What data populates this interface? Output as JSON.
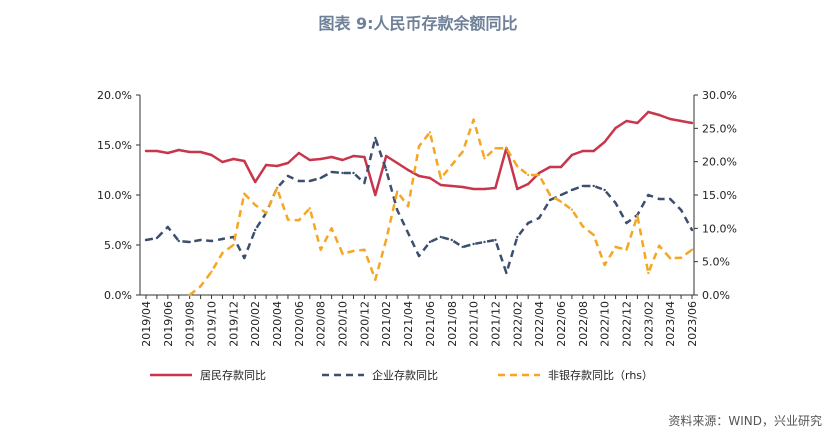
{
  "chart_data": {
    "type": "line",
    "title": "图表 9:人民币存款余额同比",
    "source": "资料来源：WIND，兴业研究",
    "categories": [
      "2019/04",
      "2019/05",
      "2019/06",
      "2019/07",
      "2019/08",
      "2019/09",
      "2019/10",
      "2019/11",
      "2019/12",
      "2020/01",
      "2020/02",
      "2020/03",
      "2020/04",
      "2020/05",
      "2020/06",
      "2020/07",
      "2020/08",
      "2020/09",
      "2020/10",
      "2020/11",
      "2020/12",
      "2021/01",
      "2021/02",
      "2021/03",
      "2021/04",
      "2021/05",
      "2021/06",
      "2021/07",
      "2021/08",
      "2021/09",
      "2021/10",
      "2021/11",
      "2021/12",
      "2022/01",
      "2022/02",
      "2022/03",
      "2022/04",
      "2022/05",
      "2022/06",
      "2022/07",
      "2022/08",
      "2022/09",
      "2022/10",
      "2022/11",
      "2022/12",
      "2023/01",
      "2023/02",
      "2023/03",
      "2023/04",
      "2023/05",
      "2023/06"
    ],
    "y_left": {
      "range": [
        0,
        20
      ],
      "ticks": [
        "0.0%",
        "5.0%",
        "10.0%",
        "15.0%",
        "20.0%"
      ]
    },
    "y_right": {
      "range": [
        0,
        30
      ],
      "ticks": [
        "0.0%",
        "5.0%",
        "10.0%",
        "15.0%",
        "20.0%",
        "25.0%",
        "30.0%"
      ]
    },
    "grid": false,
    "legend_position": "bottom",
    "series": [
      {
        "name": "居民存款同比",
        "axis": "left",
        "color": "#c8364b",
        "dash": false,
        "values": [
          14.4,
          14.4,
          14.2,
          14.5,
          14.3,
          14.3,
          14.0,
          13.3,
          13.6,
          13.4,
          11.3,
          13.0,
          12.9,
          13.2,
          14.2,
          13.5,
          13.6,
          13.8,
          13.5,
          13.9,
          13.8,
          10.0,
          13.9,
          13.2,
          12.5,
          11.9,
          11.7,
          11.0,
          10.9,
          10.8,
          10.6,
          10.6,
          10.7,
          14.7,
          10.6,
          11.1,
          12.2,
          12.8,
          12.8,
          14.0,
          14.4,
          14.4,
          15.3,
          16.7,
          17.4,
          17.2,
          18.3,
          18.0,
          17.6,
          17.4,
          17.2
        ]
      },
      {
        "name": "企业存款同比",
        "axis": "left",
        "color": "#3d4f6e",
        "dash": true,
        "values": [
          5.5,
          5.7,
          6.8,
          5.4,
          5.3,
          5.5,
          5.4,
          5.6,
          5.8,
          3.7,
          6.5,
          8.2,
          10.7,
          11.9,
          11.4,
          11.4,
          11.7,
          12.3,
          12.2,
          12.2,
          11.2,
          15.7,
          12.5,
          8.5,
          6.2,
          3.9,
          5.3,
          5.8,
          5.5,
          4.8,
          5.1,
          5.3,
          5.5,
          2.2,
          5.8,
          7.2,
          7.7,
          9.5,
          10.0,
          10.5,
          10.9,
          10.9,
          10.5,
          9.2,
          7.2,
          8.0,
          10.0,
          9.6,
          9.6,
          8.5,
          6.5
        ]
      },
      {
        "name": "非银存款同比（rhs）",
        "axis": "right",
        "color": "#f5a623",
        "dash": true,
        "values": [
          null,
          null,
          null,
          null,
          0.0,
          1.3,
          3.5,
          6.3,
          7.5,
          15.2,
          13.5,
          12.3,
          16.0,
          11.3,
          11.2,
          13.0,
          6.8,
          10.0,
          6.2,
          6.6,
          6.8,
          2.3,
          8.3,
          15.5,
          13.3,
          22.3,
          24.4,
          17.5,
          19.5,
          21.5,
          26.3,
          20.5,
          22.0,
          22.0,
          19.3,
          18.0,
          18.0,
          15.0,
          14.0,
          12.8,
          10.3,
          9.0,
          4.5,
          7.2,
          6.8,
          11.9,
          3.3,
          7.4,
          5.5,
          5.6,
          6.8
        ]
      }
    ]
  }
}
